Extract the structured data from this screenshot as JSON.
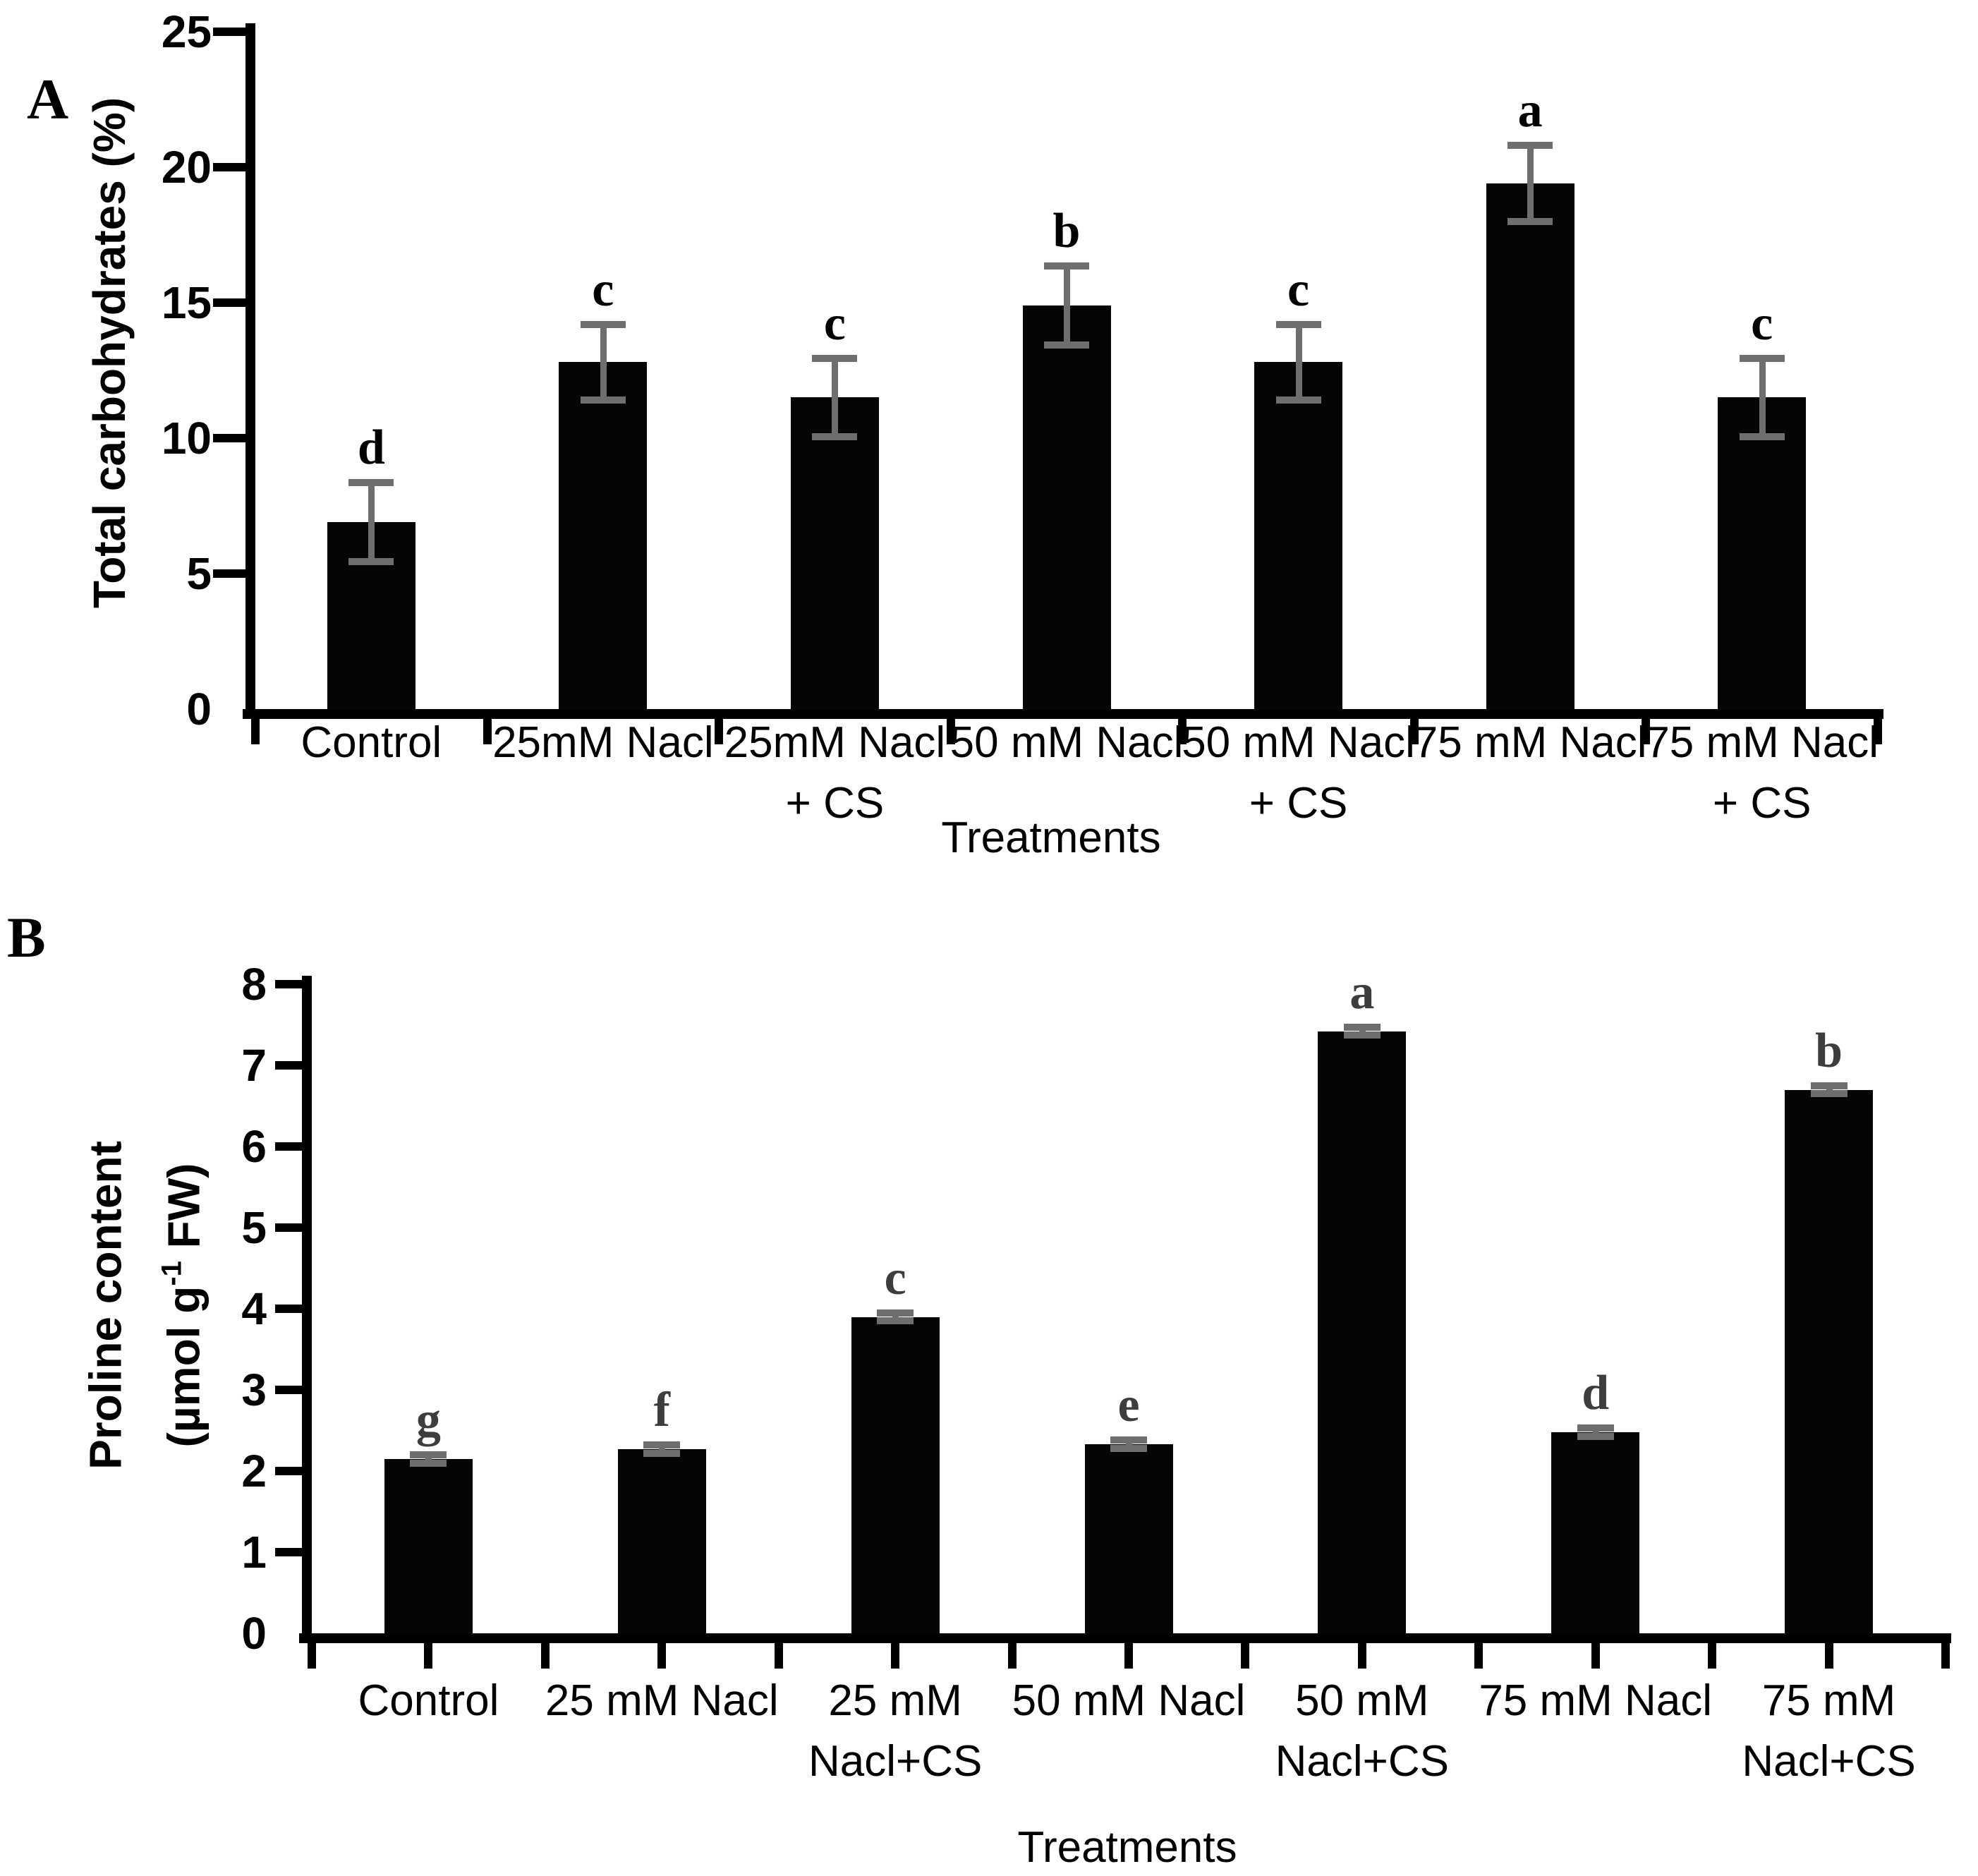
{
  "figure": {
    "panel_a_label": "A",
    "panel_b_label": "B"
  },
  "colors": {
    "bar": "#050505",
    "axis": "#000000",
    "error_bar": "#6e6e6e",
    "sig_letter_panel_a": "#000000",
    "sig_letter_panel_b": "#3d3d3d"
  },
  "chart_data": [
    {
      "type": "bar",
      "panel": "A",
      "title": "",
      "xlabel": "Treatments",
      "ylabel": "Total carbohydrates (%)",
      "ylim": [
        0,
        25
      ],
      "yticks": [
        0,
        5,
        10,
        15,
        20,
        25
      ],
      "grid": false,
      "legend": "none",
      "categories": [
        "Control",
        "25mM Nacl",
        "25mM Nacl + CS",
        "50 mM Nacl",
        "50 mM Nacl + CS",
        "75 mM Nacl",
        "75 mM Nacl + CS"
      ],
      "category_lines": [
        [
          "Control"
        ],
        [
          "25mM Nacl"
        ],
        [
          "25mM Nacl",
          "+ CS"
        ],
        [
          "50 mM Nacl"
        ],
        [
          "50 mM Nacl",
          "+ CS"
        ],
        [
          "75 mM Nacl"
        ],
        [
          "75 mM Nacl",
          "+ CS"
        ]
      ],
      "values": [
        6.9,
        12.8,
        11.5,
        14.9,
        12.8,
        19.4,
        11.5
      ],
      "errors": [
        1.45,
        1.4,
        1.45,
        1.45,
        1.4,
        1.4,
        1.45
      ],
      "sig_letters": [
        "d",
        "c",
        "c",
        "b",
        "c",
        "a",
        "c"
      ]
    },
    {
      "type": "bar",
      "panel": "B",
      "title": "",
      "xlabel": "Treatments",
      "ylabel": "Proline content (µmol g-1 FW)",
      "ylabel_lines": {
        "line1": "Proline content",
        "line2_pre": "(µmol g",
        "line2_sup": "-1",
        "line2_post": " FW)"
      },
      "ylim": [
        0,
        8
      ],
      "yticks": [
        0,
        1,
        2,
        3,
        4,
        5,
        6,
        7,
        8
      ],
      "grid": false,
      "legend": "none",
      "categories": [
        "Control",
        "25 mM Nacl",
        "25 mM Nacl+CS",
        "50 mM Nacl",
        "50 mM Nacl+CS",
        "75 mM Nacl",
        "75 mM Nacl+CS"
      ],
      "category_lines": [
        [
          "Control"
        ],
        [
          "25 mM Nacl"
        ],
        [
          "25 mM",
          "Nacl+CS"
        ],
        [
          "50 mM Nacl"
        ],
        [
          "50 mM",
          "Nacl+CS"
        ],
        [
          "75 mM Nacl"
        ],
        [
          "75 mM",
          "Nacl+CS"
        ]
      ],
      "values": [
        2.15,
        2.27,
        3.9,
        2.33,
        7.42,
        2.48,
        6.7
      ],
      "errors": [
        0.05,
        0.05,
        0.05,
        0.05,
        0.05,
        0.05,
        0.05
      ],
      "sig_letters": [
        "g",
        "f",
        "c",
        "e",
        "a",
        "d",
        "b"
      ]
    }
  ]
}
